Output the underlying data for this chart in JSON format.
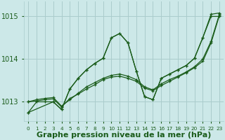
{
  "title": "Graphe pression niveau de la mer (hPa)",
  "bg_color": "#cce8e8",
  "grid_color": "#aacccc",
  "line_color": "#1a5c1a",
  "marker_color": "#1a5c1a",
  "ylabel_ticks": [
    1013,
    1014,
    1015
  ],
  "xlim": [
    -0.5,
    23.5
  ],
  "ylim": [
    1012.55,
    1015.35
  ],
  "series": [
    {
      "x": [
        0,
        1,
        2,
        3,
        4,
        5,
        6,
        7,
        8,
        9,
        10,
        11,
        12,
        13,
        14,
        15,
        16,
        17,
        18,
        19,
        20,
        21,
        22,
        23
      ],
      "y": [
        1012.75,
        1013.0,
        1013.0,
        1013.0,
        1012.82,
        1013.3,
        1013.55,
        1013.75,
        1013.9,
        1014.02,
        1014.5,
        1014.6,
        1014.38,
        1013.72,
        1013.12,
        1013.05,
        1013.55,
        1013.65,
        1013.75,
        1013.85,
        1014.02,
        1014.5,
        1015.0,
        1015.0
      ]
    },
    {
      "x": [
        0,
        1,
        2,
        3,
        4,
        5,
        6,
        7,
        8,
        9,
        10,
        11,
        12,
        13,
        14,
        15,
        16,
        17,
        18,
        19,
        20,
        21,
        22,
        23
      ],
      "y": [
        1013.0,
        1013.05,
        1013.08,
        1013.1,
        1012.9,
        1013.05,
        1013.2,
        1013.35,
        1013.45,
        1013.55,
        1013.62,
        1013.65,
        1013.6,
        1013.52,
        1013.35,
        1013.28,
        1013.42,
        1013.52,
        1013.6,
        1013.7,
        1013.82,
        1014.0,
        1014.42,
        1015.05
      ]
    },
    {
      "x": [
        0,
        1,
        2,
        3,
        4,
        5,
        6,
        7,
        8,
        9,
        10,
        11,
        12,
        13,
        14,
        15,
        16,
        17,
        18,
        19,
        20,
        21,
        22,
        23
      ],
      "y": [
        1013.0,
        1013.02,
        1013.05,
        1013.07,
        1012.88,
        1013.08,
        1013.18,
        1013.3,
        1013.4,
        1013.52,
        1013.58,
        1013.6,
        1013.55,
        1013.48,
        1013.32,
        1013.26,
        1013.38,
        1013.48,
        1013.58,
        1013.68,
        1013.8,
        1013.95,
        1014.38,
        1015.02
      ]
    },
    {
      "x": [
        0,
        3,
        4,
        5,
        6,
        7,
        8,
        9,
        10,
        11,
        12,
        13,
        14,
        15,
        16,
        17,
        18,
        19,
        20,
        21,
        22,
        23
      ],
      "y": [
        1012.75,
        1013.0,
        1012.82,
        1013.3,
        1013.55,
        1013.75,
        1013.9,
        1014.02,
        1014.5,
        1014.6,
        1014.38,
        1013.72,
        1013.12,
        1013.05,
        1013.55,
        1013.65,
        1013.75,
        1013.85,
        1014.02,
        1014.5,
        1015.05,
        1015.08
      ]
    }
  ],
  "xtick_labels": [
    "0",
    "1",
    "2",
    "3",
    "4",
    "5",
    "6",
    "7",
    "8",
    "9",
    "10",
    "11",
    "12",
    "13",
    "14",
    "15",
    "16",
    "17",
    "18",
    "19",
    "20",
    "21",
    "22",
    "23"
  ]
}
